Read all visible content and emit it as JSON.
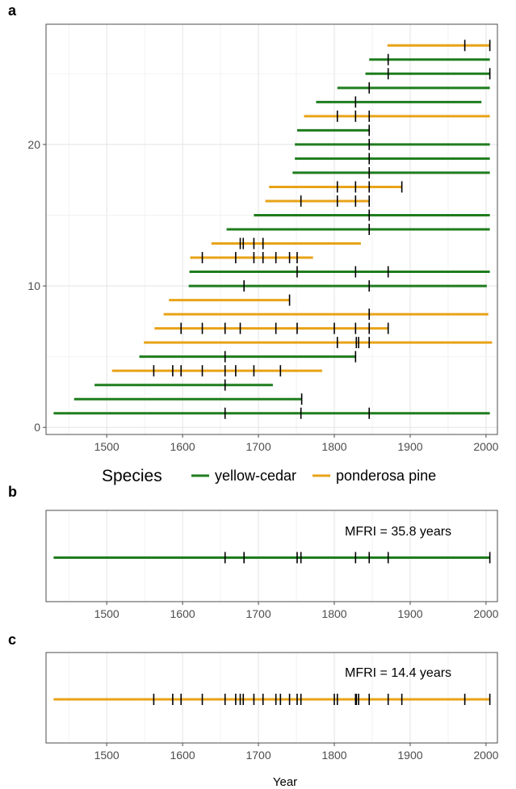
{
  "colors": {
    "yellow_cedar": "#1e7d1e",
    "ponderosa_pine": "#e8a317",
    "scar": "#000000",
    "grid_major": "#e3e3e3",
    "grid_minor": "#f2f2f2",
    "frame": "#4d4d4d"
  },
  "legend": {
    "title": "Species",
    "entries": [
      {
        "name": "yellow-cedar",
        "color_key": "yellow_cedar"
      },
      {
        "name": "ponderosa pine",
        "color_key": "ponderosa_pine"
      }
    ]
  },
  "chart_data": [
    {
      "panel": "a",
      "type": "line",
      "title": "",
      "xlabel": "",
      "ylabel": "",
      "xlim": [
        1420,
        2015
      ],
      "ylim": [
        -0.5,
        28.5
      ],
      "xticks": [
        1500,
        1600,
        1700,
        1800,
        1900,
        2000
      ],
      "yticks": [
        0,
        10,
        20
      ],
      "grid": true,
      "series": [
        {
          "name": "yellow-cedar",
          "color_key": "yellow_cedar",
          "trees": [
            {
              "y": 1,
              "start": 1430,
              "end": 2005,
              "scars": [
                1656,
                1756,
                1846
              ]
            },
            {
              "y": 2,
              "start": 1457,
              "end": 1757,
              "scars": [
                1757
              ]
            },
            {
              "y": 3,
              "start": 1484,
              "end": 1719,
              "scars": [
                1656
              ]
            },
            {
              "y": 5,
              "start": 1543,
              "end": 1828,
              "scars": [
                1656,
                1828
              ]
            },
            {
              "y": 10,
              "start": 1608,
              "end": 2001,
              "scars": [
                1681,
                1846
              ]
            },
            {
              "y": 11,
              "start": 1609,
              "end": 2005,
              "scars": [
                1751,
                1828,
                1871
              ]
            },
            {
              "y": 14,
              "start": 1658,
              "end": 2005,
              "scars": [
                1846
              ]
            },
            {
              "y": 15,
              "start": 1694,
              "end": 2005,
              "scars": [
                1846
              ]
            },
            {
              "y": 18,
              "start": 1745,
              "end": 2005,
              "scars": [
                1846
              ]
            },
            {
              "y": 19,
              "start": 1748,
              "end": 2005,
              "scars": [
                1846
              ]
            },
            {
              "y": 20,
              "start": 1748,
              "end": 2005,
              "scars": [
                1846
              ]
            },
            {
              "y": 21,
              "start": 1751,
              "end": 1846,
              "scars": [
                1846
              ]
            },
            {
              "y": 23,
              "start": 1776,
              "end": 1994,
              "scars": [
                1828
              ]
            },
            {
              "y": 24,
              "start": 1804,
              "end": 2005,
              "scars": [
                1846
              ]
            },
            {
              "y": 25,
              "start": 1841,
              "end": 2005,
              "scars": [
                1871,
                2005
              ]
            },
            {
              "y": 26,
              "start": 1846,
              "end": 2005,
              "scars": [
                1871
              ]
            }
          ]
        },
        {
          "name": "ponderosa pine",
          "color_key": "ponderosa_pine",
          "trees": [
            {
              "y": 4,
              "start": 1507,
              "end": 1784,
              "scars": [
                1562,
                1587,
                1598,
                1626,
                1656,
                1670,
                1694,
                1729
              ]
            },
            {
              "y": 6,
              "start": 1549,
              "end": 2008,
              "scars": [
                1804,
                1829,
                1832,
                1846
              ]
            },
            {
              "y": 7,
              "start": 1563,
              "end": 1871,
              "scars": [
                1598,
                1626,
                1656,
                1676,
                1723,
                1751,
                1800,
                1828,
                1846,
                1871
              ]
            },
            {
              "y": 8,
              "start": 1575,
              "end": 2003,
              "scars": [
                1846
              ]
            },
            {
              "y": 9,
              "start": 1582,
              "end": 1741,
              "scars": [
                1741
              ]
            },
            {
              "y": 12,
              "start": 1610,
              "end": 1772,
              "scars": [
                1626,
                1670,
                1694,
                1706,
                1723,
                1741,
                1751
              ]
            },
            {
              "y": 13,
              "start": 1638,
              "end": 1835,
              "scars": [
                1676,
                1680,
                1694,
                1706
              ]
            },
            {
              "y": 16,
              "start": 1709,
              "end": 1846,
              "scars": [
                1756,
                1804,
                1828,
                1846
              ]
            },
            {
              "y": 17,
              "start": 1714,
              "end": 1889,
              "scars": [
                1804,
                1828,
                1846,
                1889
              ]
            },
            {
              "y": 22,
              "start": 1760,
              "end": 2005,
              "scars": [
                1804,
                1828,
                1846
              ]
            },
            {
              "y": 27,
              "start": 1870,
              "end": 2005,
              "scars": [
                1972,
                2005
              ]
            }
          ]
        }
      ]
    },
    {
      "panel": "b",
      "type": "line",
      "title": "",
      "xlabel": "",
      "ylabel": "",
      "xlim": [
        1420,
        2015
      ],
      "xticks": [
        1500,
        1600,
        1700,
        1800,
        1900,
        2000
      ],
      "grid": true,
      "annotation": "MFRI = 35.8 years",
      "series": [
        {
          "name": "yellow-cedar",
          "color_key": "yellow_cedar",
          "start": 1430,
          "end": 2005,
          "scars": [
            1656,
            1681,
            1751,
            1756,
            1828,
            1846,
            1871,
            2005
          ]
        }
      ]
    },
    {
      "panel": "c",
      "type": "line",
      "title": "",
      "xlabel": "Year",
      "ylabel": "",
      "xlim": [
        1420,
        2015
      ],
      "xticks": [
        1500,
        1600,
        1700,
        1800,
        1900,
        2000
      ],
      "grid": true,
      "annotation": "MFRI = 14.4 years",
      "series": [
        {
          "name": "ponderosa pine",
          "color_key": "ponderosa_pine",
          "start": 1430,
          "end": 2005,
          "scars": [
            1562,
            1587,
            1598,
            1626,
            1656,
            1670,
            1676,
            1680,
            1694,
            1706,
            1723,
            1729,
            1741,
            1751,
            1756,
            1800,
            1804,
            1828,
            1829,
            1832,
            1846,
            1871,
            1889,
            1972,
            2005
          ]
        }
      ]
    }
  ]
}
